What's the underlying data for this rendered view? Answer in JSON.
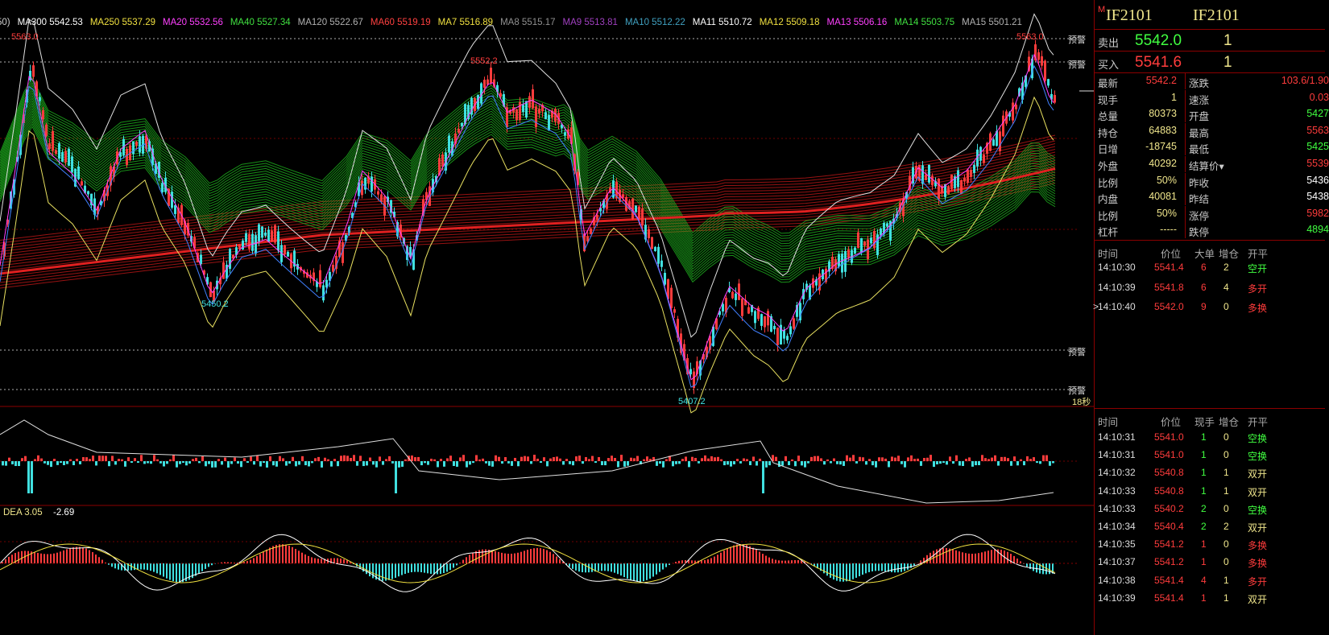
{
  "ma_bar": [
    {
      "label": "50)",
      "color": "#cfcfcf"
    },
    {
      "label": "MA300 5542.53",
      "color": "#ffffff"
    },
    {
      "label": "MA250 5537.29",
      "color": "#f0e040"
    },
    {
      "label": "MA20 5532.56",
      "color": "#ff40ff"
    },
    {
      "label": "MA40 5527.34",
      "color": "#40e040"
    },
    {
      "label": "MA120 5522.67",
      "color": "#b0b0b0"
    },
    {
      "label": "MA60 5519.19",
      "color": "#ff4040"
    },
    {
      "label": "MA7 5516.89",
      "color": "#f0e040"
    },
    {
      "label": "MA8 5515.17",
      "color": "#909090"
    },
    {
      "label": "MA9 5513.81",
      "color": "#a040c0"
    },
    {
      "label": "MA10 5512.22",
      "color": "#40a0c0"
    },
    {
      "label": "MA11 5510.72",
      "color": "#ffffff"
    },
    {
      "label": "MA12 5509.18",
      "color": "#f0e040"
    },
    {
      "label": "MA13 5506.16",
      "color": "#ff40ff"
    },
    {
      "label": "MA14 5503.75",
      "color": "#40e040"
    },
    {
      "label": "MA15 5501.21",
      "color": "#b0b0b0"
    }
  ],
  "annotations": {
    "high_left": "5563.0",
    "high_mid": "5552.2",
    "high_right": "5563.0",
    "low_left": "5450.2",
    "low_mid": "5407.2",
    "alert1": "预警",
    "alert2": "预警",
    "alert3": "预警",
    "alert4": "预警",
    "timer": "18秒",
    "dea_label": "DEA 3.05",
    "dea_value": "-2.69"
  },
  "colors": {
    "up": "#ff3c3c",
    "down": "#40e0e0",
    "grid": "#8b0000",
    "accent": "#f0e68c",
    "green": "#40ff40"
  },
  "header": {
    "code_left": "IF2101",
    "code_right": "IF2101",
    "marker": "M"
  },
  "quote": {
    "sell_label": "卖出",
    "sell_price": "5542.0",
    "sell_qty": "1",
    "buy_label": "买入",
    "buy_price": "5541.6",
    "buy_qty": "1"
  },
  "stats_left": [
    {
      "k": "最新",
      "v": "5542.2",
      "c": "#ff3c3c"
    },
    {
      "k": "现手",
      "v": "1",
      "c": "#f0e68c"
    },
    {
      "k": "总量",
      "v": "80373",
      "c": "#f0e68c"
    },
    {
      "k": "持仓",
      "v": "64883",
      "c": "#f0e68c"
    },
    {
      "k": "日增",
      "v": "-18745",
      "c": "#f0e68c"
    },
    {
      "k": "外盘",
      "v": "40292",
      "c": "#f0e68c"
    },
    {
      "k": "比例",
      "v": "50%",
      "c": "#f0e68c"
    },
    {
      "k": "内盘",
      "v": "40081",
      "c": "#f0e68c"
    },
    {
      "k": "比例",
      "v": "50%",
      "c": "#f0e68c"
    },
    {
      "k": "杠杆",
      "v": "-----",
      "c": "#f0e68c"
    }
  ],
  "stats_right": [
    {
      "k": "涨跌",
      "v": "103.6/1.90",
      "c": "#ff3c3c"
    },
    {
      "k": "速涨",
      "v": "0.03",
      "c": "#ff3c3c"
    },
    {
      "k": "开盘",
      "v": "5427",
      "c": "#40ff40"
    },
    {
      "k": "最高",
      "v": "5563",
      "c": "#ff3c3c"
    },
    {
      "k": "最低",
      "v": "5425",
      "c": "#40ff40"
    },
    {
      "k": "结算价▾",
      "v": "5539",
      "c": "#ff3c3c"
    },
    {
      "k": "昨收",
      "v": "5436",
      "c": "#ffffff"
    },
    {
      "k": "昨结",
      "v": "5438",
      "c": "#ffffff"
    },
    {
      "k": "涨停",
      "v": "5982",
      "c": "#ff3c3c"
    },
    {
      "k": "跌停",
      "v": "4894",
      "c": "#40ff40"
    }
  ],
  "big_trades": {
    "headers": [
      "时间",
      "价位",
      "大单",
      "增仓",
      "开平"
    ],
    "rows": [
      {
        "marker": "",
        "time": "14:10:30",
        "price": "5541.4",
        "vol": "6",
        "inc": "2",
        "type": "空开"
      },
      {
        "marker": "",
        "time": "14:10:39",
        "price": "5541.8",
        "vol": "6",
        "inc": "4",
        "type": "多开"
      },
      {
        "marker": ">",
        "time": "14:10:40",
        "price": "5542.0",
        "vol": "9",
        "inc": "0",
        "type": "多换"
      }
    ]
  },
  "ticks": {
    "headers": [
      "时间",
      "价位",
      "现手",
      "增仓",
      "开平"
    ],
    "rows": [
      {
        "time": "14:10:31",
        "price": "5541.0",
        "vol": "1",
        "inc": "0",
        "type": "空换",
        "vc": "#40ff40",
        "tc": "#40ff40"
      },
      {
        "time": "14:10:31",
        "price": "5541.0",
        "vol": "1",
        "inc": "0",
        "type": "空换",
        "vc": "#40ff40",
        "tc": "#40ff40"
      },
      {
        "time": "14:10:32",
        "price": "5540.8",
        "vol": "1",
        "inc": "1",
        "type": "双开",
        "vc": "#40ff40",
        "tc": "#f0e68c"
      },
      {
        "time": "14:10:33",
        "price": "5540.8",
        "vol": "1",
        "inc": "1",
        "type": "双开",
        "vc": "#40ff40",
        "tc": "#f0e68c"
      },
      {
        "time": "14:10:33",
        "price": "5540.2",
        "vol": "2",
        "inc": "0",
        "type": "空换",
        "vc": "#40ff40",
        "tc": "#40ff40"
      },
      {
        "time": "14:10:34",
        "price": "5540.4",
        "vol": "2",
        "inc": "2",
        "type": "双开",
        "vc": "#40ff40",
        "tc": "#f0e68c"
      },
      {
        "time": "14:10:35",
        "price": "5541.2",
        "vol": "1",
        "inc": "0",
        "type": "多换",
        "vc": "#ff3c3c",
        "tc": "#ff3c3c"
      },
      {
        "time": "14:10:37",
        "price": "5541.2",
        "vol": "1",
        "inc": "0",
        "type": "多换",
        "vc": "#ff3c3c",
        "tc": "#ff3c3c"
      },
      {
        "time": "14:10:38",
        "price": "5541.4",
        "vol": "4",
        "inc": "1",
        "type": "多开",
        "vc": "#ff3c3c",
        "tc": "#ff3c3c"
      },
      {
        "time": "14:10:39",
        "price": "5541.4",
        "vol": "1",
        "inc": "1",
        "type": "双开",
        "vc": "#ff3c3c",
        "tc": "#f0e68c"
      }
    ]
  }
}
